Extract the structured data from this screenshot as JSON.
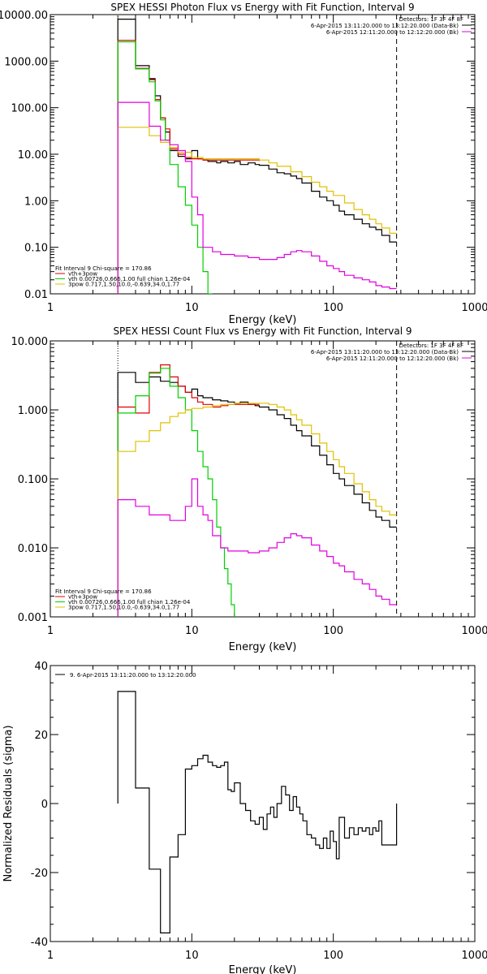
{
  "chart_data": [
    {
      "type": "line",
      "title": "SPEX HESSI Photon Flux vs Energy with Fit Function, Interval 9",
      "xlabel": "Energy (keV)",
      "ylabel": "",
      "xscale": "log",
      "yscale": "log",
      "xlim": [
        1,
        1000
      ],
      "ylim": [
        0.01,
        10000
      ],
      "grid": false,
      "xticks": [
        1,
        10,
        100,
        1000
      ],
      "xtick_labels": [
        "1",
        "10",
        "100",
        "1000"
      ],
      "yticks": [
        0.01,
        0.1,
        1,
        10,
        100,
        1000,
        10000
      ],
      "ytick_labels": [
        "0.01",
        "0.10",
        "1.00",
        "10.00",
        "100.00",
        "1000.00",
        "10000.00"
      ],
      "vlines": [
        {
          "x": 3,
          "style": "dotted",
          "color": "#d4b000"
        },
        {
          "x": 280,
          "style": "dashed",
          "color": "#000000"
        }
      ],
      "legend_topright": {
        "detectors": "Detectors: 1F 3F 4F 8F",
        "entries": [
          {
            "text": "6-Apr-2015 13:11:20.000 to 13:12:20.000 (Data-Bk)",
            "color": "#000000"
          },
          {
            "text": "6-Apr-2015 12:11:20.000 to 12:12:20.000 (Bk)",
            "color": "#e000e0"
          }
        ]
      },
      "legend_bottomleft": {
        "header": "Fit Interval 9   Chi-square = 170.86",
        "entries": [
          {
            "text": "vth+3pow",
            "color": "#e00000"
          },
          {
            "text": "vth 0.00726,0.666,1.00   full chian 1.26e-04",
            "color": "#00d000"
          },
          {
            "text": "3pow 0.717,1.50,10.0,-0.639,34.0,1.77",
            "color": "#e0c000"
          }
        ]
      },
      "series": [
        {
          "color": "#000000",
          "x": [
            3,
            3.5,
            4,
            4.5,
            5,
            5.5,
            6,
            6.5,
            7,
            8,
            9,
            10,
            11,
            12,
            13,
            14,
            15,
            16,
            18,
            20,
            22,
            25,
            28,
            30,
            35,
            40,
            45,
            50,
            55,
            60,
            70,
            80,
            90,
            100,
            110,
            120,
            140,
            160,
            180,
            200,
            220,
            250,
            280
          ],
          "y": [
            8000,
            8000,
            800,
            800,
            420,
            180,
            60,
            30,
            12,
            9,
            8,
            12,
            8,
            7.5,
            7,
            7,
            6.5,
            7,
            6.5,
            7,
            6,
            6.5,
            6,
            5.8,
            4.8,
            4,
            3.8,
            3.4,
            3,
            2.4,
            1.6,
            1.2,
            1,
            0.8,
            0.6,
            0.5,
            0.4,
            0.32,
            0.27,
            0.24,
            0.18,
            0.13,
            0.13
          ]
        },
        {
          "color": "#e00000",
          "x": [
            3,
            3.5,
            4,
            4.5,
            5,
            5.5,
            6,
            6.5,
            7,
            8,
            9,
            10,
            12,
            15,
            20,
            25,
            30
          ],
          "y": [
            2800,
            2800,
            700,
            700,
            400,
            150,
            60,
            35,
            13,
            10,
            8.5,
            8,
            7.5,
            7.5,
            7.5,
            7.5,
            7.2
          ]
        },
        {
          "color": "#00d000",
          "x": [
            3,
            3.5,
            4,
            4.5,
            5,
            5.5,
            6,
            6.5,
            7,
            8,
            9,
            10,
            11,
            12,
            13,
            14
          ],
          "y": [
            2600,
            2600,
            680,
            680,
            360,
            140,
            55,
            20,
            6,
            2,
            0.8,
            0.3,
            0.1,
            0.03,
            0.01,
            0.01
          ]
        },
        {
          "color": "#e0c000",
          "x": [
            3,
            4,
            5,
            6,
            7,
            8,
            10,
            12,
            15,
            20,
            25,
            30,
            35,
            40,
            50,
            60,
            70,
            80,
            90,
            100,
            120,
            140,
            160,
            180,
            200,
            220,
            250,
            280
          ],
          "y": [
            38,
            38,
            25,
            18,
            14,
            11,
            8.5,
            8,
            8,
            8,
            8,
            7.5,
            6.5,
            5.5,
            4.2,
            3.3,
            2.5,
            2,
            1.6,
            1.3,
            0.9,
            0.65,
            0.5,
            0.4,
            0.32,
            0.26,
            0.2,
            0.2
          ]
        },
        {
          "color": "#e000e0",
          "x": [
            3,
            4,
            5,
            6,
            7,
            8,
            9,
            10,
            11,
            12,
            14,
            16,
            18,
            20,
            25,
            30,
            35,
            40,
            45,
            50,
            55,
            60,
            70,
            80,
            90,
            100,
            110,
            120,
            140,
            160,
            180,
            200,
            220,
            250,
            280
          ],
          "y": [
            130,
            130,
            40,
            20,
            16,
            12,
            7,
            1.2,
            0.5,
            0.1,
            0.08,
            0.07,
            0.07,
            0.065,
            0.06,
            0.055,
            0.055,
            0.06,
            0.07,
            0.08,
            0.085,
            0.08,
            0.065,
            0.05,
            0.04,
            0.035,
            0.03,
            0.025,
            0.022,
            0.02,
            0.018,
            0.015,
            0.014,
            0.013,
            0.013
          ]
        }
      ]
    },
    {
      "type": "line",
      "title": "SPEX HESSI Count Flux vs Energy with Fit Function, Interval 9",
      "xlabel": "Energy (keV)",
      "ylabel": "",
      "xscale": "log",
      "yscale": "log",
      "xlim": [
        1,
        1000
      ],
      "ylim": [
        0.001,
        10
      ],
      "grid": false,
      "xticks": [
        1,
        10,
        100,
        1000
      ],
      "xtick_labels": [
        "1",
        "10",
        "100",
        "1000"
      ],
      "yticks": [
        0.001,
        0.01,
        0.1,
        1,
        10
      ],
      "ytick_labels": [
        "0.001",
        "0.010",
        "0.100",
        "1.000",
        "10.000"
      ],
      "vlines": [
        {
          "x": 3,
          "style": "dotted",
          "color": "#000000"
        },
        {
          "x": 280,
          "style": "dashed",
          "color": "#000000"
        }
      ],
      "legend_topright": {
        "detectors": "Detectors: 1F 3F 4F 8F",
        "entries": [
          {
            "text": "6-Apr-2015 13:11:20.000 to 13:12:20.000 (Data-Bk)",
            "color": "#000000"
          },
          {
            "text": "6-Apr-2015 12:11:20.000 to 12:12:20.000 (Bk)",
            "color": "#e000e0"
          }
        ]
      },
      "legend_bottomleft": {
        "header": "Fit Interval 9   Chi-square = 170.86",
        "entries": [
          {
            "text": "vth+3pow",
            "color": "#e00000"
          },
          {
            "text": "vth 0.00726,0.666,1.00   full chian 1.26e-04",
            "color": "#00d000"
          },
          {
            "text": "3pow 0.717,1.50,10.0,-0.639,34.0,1.77",
            "color": "#e0c000"
          }
        ]
      },
      "series": [
        {
          "color": "#000000",
          "x": [
            3,
            4,
            5,
            6,
            7,
            8,
            9,
            10,
            11,
            12,
            14,
            16,
            18,
            20,
            22,
            25,
            28,
            30,
            35,
            40,
            45,
            50,
            55,
            60,
            70,
            80,
            90,
            100,
            110,
            120,
            140,
            160,
            180,
            200,
            220,
            250,
            280
          ],
          "y": [
            3.5,
            2.5,
            3,
            2.6,
            2.5,
            2.2,
            1.8,
            2,
            1.6,
            1.5,
            1.4,
            1.35,
            1.3,
            1.25,
            1.3,
            1.2,
            1.15,
            1.1,
            1,
            0.85,
            0.75,
            0.6,
            0.5,
            0.42,
            0.3,
            0.22,
            0.16,
            0.12,
            0.1,
            0.08,
            0.06,
            0.045,
            0.035,
            0.028,
            0.025,
            0.02,
            0.02
          ]
        },
        {
          "color": "#e00000",
          "x": [
            3,
            4,
            5,
            6,
            7,
            8,
            9,
            10,
            11,
            12,
            14,
            16,
            18,
            20,
            25,
            30
          ],
          "y": [
            1.1,
            0.9,
            3.5,
            4.5,
            3,
            2.2,
            1.8,
            1.5,
            1.3,
            1.2,
            1.1,
            1.15,
            1.2,
            1.2,
            1.2,
            1.2
          ]
        },
        {
          "color": "#00d000",
          "x": [
            3,
            4,
            5,
            6,
            7,
            8,
            9,
            10,
            11,
            12,
            13,
            14,
            15,
            16,
            17,
            18,
            19,
            20
          ],
          "y": [
            0.9,
            1.6,
            3.4,
            4,
            2.2,
            1.5,
            1,
            0.5,
            0.25,
            0.15,
            0.1,
            0.05,
            0.02,
            0.01,
            0.005,
            0.003,
            0.0015,
            0.001
          ]
        },
        {
          "color": "#e0c000",
          "x": [
            3,
            4,
            5,
            6,
            7,
            8,
            9,
            10,
            12,
            14,
            16,
            18,
            20,
            25,
            30,
            35,
            40,
            45,
            50,
            55,
            60,
            70,
            80,
            90,
            100,
            110,
            120,
            140,
            160,
            180,
            200,
            220,
            250,
            280
          ],
          "y": [
            0.25,
            0.35,
            0.5,
            0.65,
            0.8,
            0.9,
            1,
            1.05,
            1.1,
            1.15,
            1.2,
            1.2,
            1.25,
            1.25,
            1.25,
            1.2,
            1.1,
            1,
            0.85,
            0.72,
            0.6,
            0.45,
            0.33,
            0.25,
            0.19,
            0.15,
            0.12,
            0.085,
            0.065,
            0.05,
            0.04,
            0.034,
            0.03,
            0.03
          ]
        },
        {
          "color": "#e000e0",
          "x": [
            3,
            4,
            5,
            6,
            7,
            8,
            9,
            10,
            11,
            12,
            13,
            14,
            16,
            18,
            20,
            25,
            30,
            35,
            40,
            45,
            50,
            55,
            60,
            70,
            80,
            90,
            100,
            110,
            120,
            140,
            160,
            180,
            200,
            220,
            250,
            280
          ],
          "y": [
            0.05,
            0.04,
            0.03,
            0.03,
            0.025,
            0.025,
            0.04,
            0.1,
            0.04,
            0.03,
            0.025,
            0.015,
            0.01,
            0.009,
            0.009,
            0.0085,
            0.009,
            0.01,
            0.012,
            0.014,
            0.016,
            0.015,
            0.014,
            0.011,
            0.009,
            0.0075,
            0.006,
            0.0055,
            0.0045,
            0.0035,
            0.003,
            0.0025,
            0.002,
            0.0018,
            0.0015,
            0.0015
          ]
        }
      ]
    },
    {
      "type": "line",
      "title": "",
      "xlabel": "Energy (keV)",
      "ylabel": "Normalized Residuals (sigma)",
      "xscale": "log",
      "yscale": "linear",
      "xlim": [
        1,
        1000
      ],
      "ylim": [
        -40,
        40
      ],
      "grid": false,
      "xticks": [
        1,
        10,
        100,
        1000
      ],
      "xtick_labels": [
        "1",
        "10",
        "100",
        "1000"
      ],
      "yticks": [
        -40,
        -20,
        0,
        20,
        40
      ],
      "ytick_labels": [
        "-40",
        "-20",
        "0",
        "20",
        "40"
      ],
      "legend_topleft": {
        "entries": [
          {
            "text": "9.  6-Apr-2015 13:11:20.000 to 13:12:20.000",
            "color": "#000000"
          }
        ]
      },
      "series": [
        {
          "color": "#000000",
          "step": true,
          "x": [
            3,
            4,
            5,
            6,
            7,
            8,
            9,
            10,
            11,
            12,
            13,
            14,
            15,
            16,
            17,
            18,
            19,
            20,
            22,
            24,
            26,
            28,
            30,
            32,
            34,
            36,
            38,
            40,
            43,
            46,
            49,
            52,
            55,
            58,
            61,
            65,
            70,
            75,
            80,
            85,
            90,
            95,
            100,
            105,
            110,
            120,
            130,
            140,
            150,
            160,
            170,
            180,
            190,
            200,
            210,
            220,
            240,
            260,
            280
          ],
          "y": [
            32.5,
            4.5,
            -19,
            -37.5,
            -15.5,
            -9,
            10,
            11,
            13,
            14,
            12,
            11,
            10.5,
            11,
            12,
            4,
            3.5,
            6,
            0,
            -2,
            -5,
            -6,
            -4,
            -7.5,
            -3,
            -1,
            -4,
            0,
            5,
            2.5,
            -2,
            2,
            -1,
            -3,
            -5,
            -9,
            -10,
            -12,
            -13,
            -10,
            -13,
            -8,
            -11,
            -16,
            -4,
            -10,
            -7,
            -9,
            -7,
            -8,
            -7,
            -9,
            -7,
            -8,
            -5,
            -12,
            -12,
            -12,
            -12
          ]
        }
      ]
    }
  ]
}
